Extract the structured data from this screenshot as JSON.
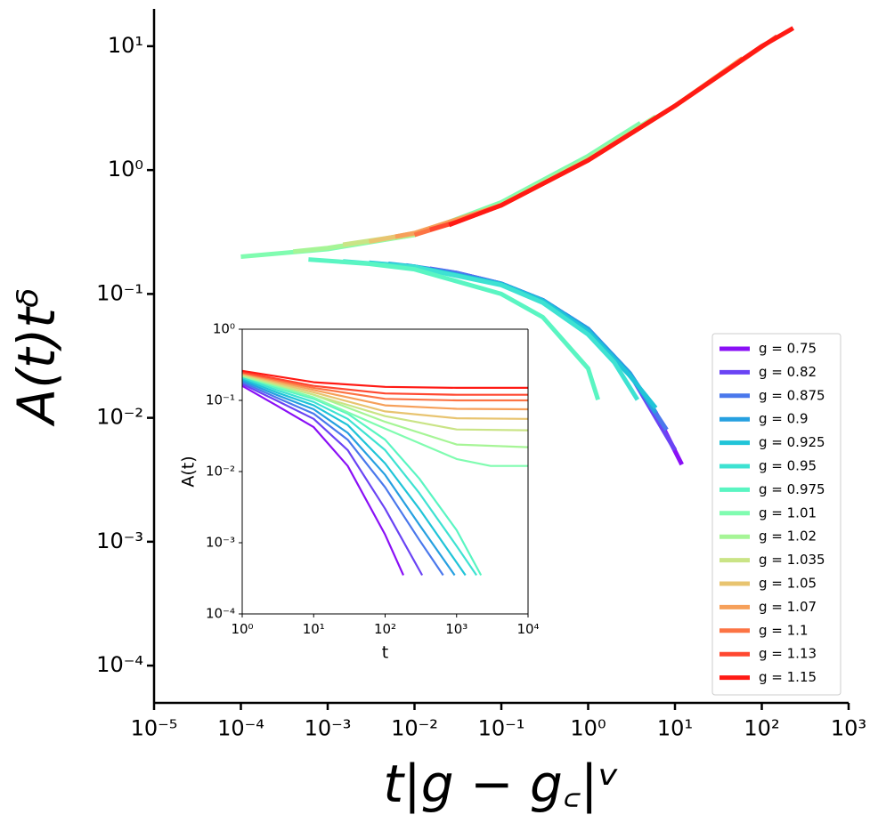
{
  "chart_data": [
    {
      "type": "line",
      "xscale": "log",
      "yscale": "log",
      "xlabel": "t|g − g꜀|ᵛ",
      "ylabel": "A(t)tᵟ",
      "xlim": [
        1e-05,
        1000
      ],
      "ylim": [
        5e-05,
        20
      ],
      "xticks": [
        {
          "value": 1e-05,
          "label": "10⁻⁵"
        },
        {
          "value": 0.0001,
          "label": "10⁻⁴"
        },
        {
          "value": 0.001,
          "label": "10⁻³"
        },
        {
          "value": 0.01,
          "label": "10⁻²"
        },
        {
          "value": 0.1,
          "label": "10⁻¹"
        },
        {
          "value": 1,
          "label": "10⁰"
        },
        {
          "value": 10,
          "label": "10¹"
        },
        {
          "value": 100,
          "label": "10²"
        },
        {
          "value": 1000,
          "label": "10³"
        }
      ],
      "yticks": [
        {
          "value": 0.0001,
          "label": "10⁻⁴"
        },
        {
          "value": 0.001,
          "label": "10⁻³"
        },
        {
          "value": 0.01,
          "label": "10⁻²"
        },
        {
          "value": 0.1,
          "label": "10⁻¹"
        },
        {
          "value": 1,
          "label": "10⁰"
        },
        {
          "value": 10,
          "label": "10¹"
        }
      ],
      "legend": "lower right",
      "series": [
        {
          "name": "g = 0.75",
          "color": "#8a10f6",
          "x": [
            0.03,
            0.1,
            0.3,
            1,
            3,
            6,
            12
          ],
          "values": [
            0.148,
            0.121,
            0.089,
            0.052,
            0.023,
            0.011,
            0.0042
          ]
        },
        {
          "name": "g = 0.82",
          "color": "#6a44f4",
          "x": [
            0.015,
            0.03,
            0.1,
            0.3,
            1,
            3,
            10
          ],
          "values": [
            0.16,
            0.148,
            0.121,
            0.089,
            0.052,
            0.023,
            0.0055
          ]
        },
        {
          "name": "g = 0.875",
          "color": "#4a78ec",
          "x": [
            0.008,
            0.03,
            0.1,
            0.3,
            1,
            3,
            8
          ],
          "values": [
            0.17,
            0.148,
            0.121,
            0.089,
            0.052,
            0.023,
            0.008
          ]
        },
        {
          "name": "g = 0.9",
          "color": "#26a0e0",
          "x": [
            0.005,
            0.01,
            0.1,
            0.3,
            1,
            3,
            6
          ],
          "values": [
            0.175,
            0.166,
            0.121,
            0.089,
            0.052,
            0.023,
            0.011
          ]
        },
        {
          "name": "g = 0.925",
          "color": "#20c4d8",
          "x": [
            0.003,
            0.01,
            0.1,
            0.3,
            1,
            3,
            6
          ],
          "values": [
            0.179,
            0.166,
            0.12,
            0.088,
            0.05,
            0.022,
            0.012
          ]
        },
        {
          "name": "g = 0.95",
          "color": "#3ee2d2",
          "x": [
            0.0015,
            0.01,
            0.1,
            0.3,
            1,
            2,
            3.7
          ],
          "values": [
            0.183,
            0.165,
            0.118,
            0.085,
            0.047,
            0.028,
            0.014
          ]
        },
        {
          "name": "g = 0.975",
          "color": "#5af5c2",
          "x": [
            0.0006,
            0.003,
            0.01,
            0.1,
            0.3,
            1,
            1.3
          ],
          "values": [
            0.19,
            0.175,
            0.158,
            0.1,
            0.065,
            0.025,
            0.014
          ]
        },
        {
          "name": "g = 1.01",
          "color": "#80fcb0",
          "x": [
            0.0001,
            0.001,
            0.01,
            0.1,
            1,
            4
          ],
          "values": [
            0.2,
            0.23,
            0.3,
            0.55,
            1.3,
            2.4
          ]
        },
        {
          "name": "g = 1.02",
          "color": "#a6f596",
          "x": [
            0.0004,
            0.001,
            0.01,
            0.1,
            1,
            6
          ],
          "values": [
            0.22,
            0.235,
            0.3,
            0.53,
            1.25,
            2.7
          ]
        },
        {
          "name": "g = 1.035",
          "color": "#cae486",
          "x": [
            0.0015,
            0.01,
            0.1,
            1,
            10,
            15
          ],
          "values": [
            0.25,
            0.305,
            0.52,
            1.2,
            3.3,
            4.0
          ]
        },
        {
          "name": "g = 1.05",
          "color": "#e8c470",
          "x": [
            0.003,
            0.01,
            0.1,
            1,
            10,
            30
          ],
          "values": [
            0.265,
            0.31,
            0.52,
            1.2,
            3.3,
            5.6
          ]
        },
        {
          "name": "g = 1.07",
          "color": "#f6a05a",
          "x": [
            0.006,
            0.01,
            0.1,
            1,
            10,
            60
          ],
          "values": [
            0.29,
            0.31,
            0.52,
            1.2,
            3.3,
            8.0
          ]
        },
        {
          "name": "g = 1.1",
          "color": "#fc7444",
          "x": [
            0.01,
            0.03,
            0.1,
            1,
            10,
            100
          ],
          "values": [
            0.3,
            0.38,
            0.52,
            1.2,
            3.3,
            10
          ]
        },
        {
          "name": "g = 1.13",
          "color": "#ff4830",
          "x": [
            0.015,
            0.03,
            0.1,
            1,
            10,
            150
          ],
          "values": [
            0.33,
            0.38,
            0.52,
            1.2,
            3.3,
            12
          ]
        },
        {
          "name": "g = 1.15",
          "color": "#ff1a14",
          "x": [
            0.025,
            0.1,
            1,
            10,
            100,
            230
          ],
          "values": [
            0.36,
            0.52,
            1.2,
            3.3,
            10,
            14
          ]
        }
      ]
    },
    {
      "type": "line",
      "xscale": "log",
      "yscale": "log",
      "xlabel": "t",
      "ylabel": "A(t)",
      "xlim": [
        1,
        10000
      ],
      "ylim": [
        0.0001,
        1
      ],
      "xticks": [
        {
          "value": 1,
          "label": "10⁰"
        },
        {
          "value": 10,
          "label": "10¹"
        },
        {
          "value": 100,
          "label": "10²"
        },
        {
          "value": 1000,
          "label": "10³"
        },
        {
          "value": 10000,
          "label": "10⁴"
        }
      ],
      "yticks": [
        {
          "value": 0.0001,
          "label": "10⁻⁴"
        },
        {
          "value": 0.001,
          "label": "10⁻³"
        },
        {
          "value": 0.01,
          "label": "10⁻²"
        },
        {
          "value": 0.1,
          "label": "10⁻¹"
        },
        {
          "value": 1,
          "label": "10⁰"
        }
      ],
      "series": [
        {
          "color": "#8a10f6",
          "x": [
            1,
            3,
            10,
            30,
            100,
            180
          ],
          "values": [
            0.16,
            0.085,
            0.042,
            0.012,
            0.0013,
            0.00035
          ]
        },
        {
          "color": "#6a44f4",
          "x": [
            1,
            3,
            10,
            30,
            100,
            330
          ],
          "values": [
            0.17,
            0.1,
            0.055,
            0.02,
            0.003,
            0.00035
          ]
        },
        {
          "color": "#4a78ec",
          "x": [
            1,
            3,
            10,
            30,
            100,
            300,
            650
          ],
          "values": [
            0.18,
            0.11,
            0.065,
            0.028,
            0.006,
            0.0011,
            0.00035
          ]
        },
        {
          "color": "#26a0e0",
          "x": [
            1,
            3,
            10,
            30,
            100,
            300,
            940
          ],
          "values": [
            0.19,
            0.12,
            0.075,
            0.035,
            0.009,
            0.0018,
            0.00035
          ]
        },
        {
          "color": "#20c4d8",
          "x": [
            1,
            3,
            10,
            30,
            100,
            300,
            1330
          ],
          "values": [
            0.2,
            0.13,
            0.085,
            0.045,
            0.013,
            0.003,
            0.00035
          ]
        },
        {
          "color": "#3ee2d2",
          "x": [
            1,
            3,
            10,
            30,
            100,
            300,
            1000,
            1900
          ],
          "values": [
            0.21,
            0.14,
            0.095,
            0.055,
            0.02,
            0.005,
            0.0009,
            0.00035
          ]
        },
        {
          "color": "#5af5c2",
          "x": [
            1,
            3,
            10,
            30,
            100,
            300,
            1000,
            2200
          ],
          "values": [
            0.22,
            0.15,
            0.105,
            0.065,
            0.028,
            0.008,
            0.0015,
            0.00035
          ]
        },
        {
          "color": "#80fcb0",
          "x": [
            1,
            10,
            100,
            1000,
            3000,
            10000
          ],
          "values": [
            0.22,
            0.11,
            0.04,
            0.015,
            0.012,
            0.012
          ]
        },
        {
          "color": "#a6f596",
          "x": [
            1,
            10,
            100,
            1000,
            10000
          ],
          "values": [
            0.22,
            0.12,
            0.05,
            0.024,
            0.022
          ]
        },
        {
          "color": "#cae486",
          "x": [
            1,
            10,
            100,
            1000,
            10000
          ],
          "values": [
            0.23,
            0.12,
            0.06,
            0.039,
            0.038
          ]
        },
        {
          "color": "#e8c470",
          "x": [
            1,
            10,
            100,
            1000,
            10000
          ],
          "values": [
            0.235,
            0.13,
            0.07,
            0.056,
            0.055
          ]
        },
        {
          "color": "#f6a05a",
          "x": [
            1,
            10,
            100,
            1000,
            10000
          ],
          "values": [
            0.24,
            0.14,
            0.085,
            0.076,
            0.075
          ]
        },
        {
          "color": "#fc7444",
          "x": [
            1,
            10,
            100,
            1000,
            10000
          ],
          "values": [
            0.245,
            0.15,
            0.105,
            0.1,
            0.1
          ]
        },
        {
          "color": "#ff4830",
          "x": [
            1,
            10,
            100,
            1000,
            10000
          ],
          "values": [
            0.25,
            0.16,
            0.125,
            0.12,
            0.12
          ]
        },
        {
          "color": "#ff1a14",
          "x": [
            1,
            10,
            100,
            1000,
            10000
          ],
          "values": [
            0.26,
            0.18,
            0.155,
            0.15,
            0.15
          ]
        }
      ]
    }
  ]
}
